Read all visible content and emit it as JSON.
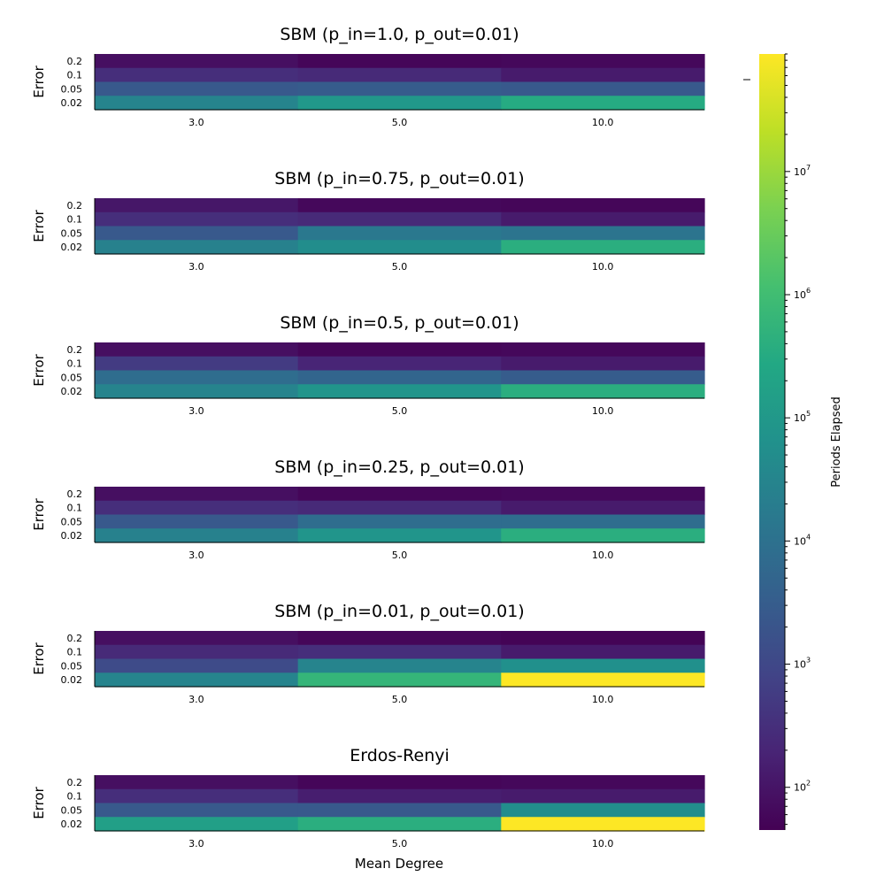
{
  "chart_data": {
    "type": "heatmap",
    "xlabel": "Mean Degree",
    "ylabel": "Error",
    "x_categories": [
      "3.0",
      "5.0",
      "10.0"
    ],
    "y_categories": [
      "0.2",
      "0.1",
      "0.05",
      "0.02"
    ],
    "colorbar": {
      "label": "Periods Elapsed",
      "scale": "log",
      "colormap": "viridis",
      "range": [
        45,
        90000000
      ],
      "ticks": [
        {
          "value": 100,
          "base": "10",
          "exp": "2"
        },
        {
          "value": 1000,
          "base": "10",
          "exp": "3"
        },
        {
          "value": 10000,
          "base": "10",
          "exp": "4"
        },
        {
          "value": 100000,
          "base": "10",
          "exp": "5"
        },
        {
          "value": 1000000,
          "base": "10",
          "exp": "6"
        },
        {
          "value": 10000000,
          "base": "10",
          "exp": "7"
        }
      ]
    },
    "panels": [
      {
        "title": "SBM (p_in=1.0, p_out=0.01)",
        "values": [
          [
            80,
            55,
            60
          ],
          [
            300,
            250,
            130
          ],
          [
            2500,
            3000,
            2500
          ],
          [
            30000,
            100000,
            320000
          ]
        ]
      },
      {
        "title": "SBM (p_in=0.75, p_out=0.01)",
        "values": [
          [
            110,
            60,
            55
          ],
          [
            300,
            250,
            130
          ],
          [
            2500,
            15000,
            12000
          ],
          [
            25000,
            50000,
            400000
          ]
        ]
      },
      {
        "title": "SBM (p_in=0.5, p_out=0.01)",
        "values": [
          [
            80,
            55,
            60
          ],
          [
            550,
            200,
            130
          ],
          [
            8000,
            5000,
            3000
          ],
          [
            30000,
            80000,
            400000
          ]
        ]
      },
      {
        "title": "SBM (p_in=0.25, p_out=0.01)",
        "values": [
          [
            80,
            55,
            60
          ],
          [
            300,
            250,
            130
          ],
          [
            2500,
            8000,
            8000
          ],
          [
            25000,
            80000,
            400000
          ]
        ]
      },
      {
        "title": "SBM (p_in=0.01, p_out=0.01)",
        "values": [
          [
            80,
            55,
            50
          ],
          [
            250,
            300,
            130
          ],
          [
            1200,
            30000,
            60000
          ],
          [
            30000,
            600000,
            90000000
          ]
        ]
      },
      {
        "title": "Erdos-Renyi",
        "values": [
          [
            80,
            55,
            60
          ],
          [
            300,
            150,
            130
          ],
          [
            2500,
            2500,
            50000
          ],
          [
            150000,
            400000,
            90000000
          ]
        ]
      }
    ]
  }
}
